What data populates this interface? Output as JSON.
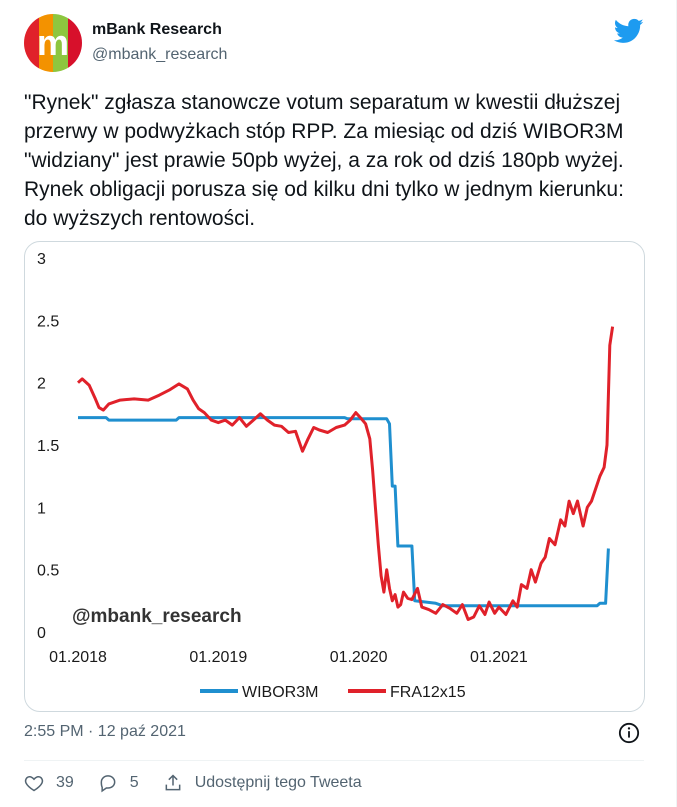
{
  "tweet": {
    "author_name": "mBank Research",
    "author_handle": "@mbank_research",
    "avatar_letter": "m",
    "text": "\"Rynek\" zgłasza stanowcze votum separatum w kwestii dłuższej przerwy w podwyżkach stóp RPP. Za miesiąc od dziś WIBOR3M \"widziany\" jest prawie 50pb wyżej, a za rok od dziś 180pb wyżej. Rynek obligacji porusza się od kilku dni tylko w jednym kierunku: do wyższych rentowości.",
    "timestamp": "2:55 PM · 12 paź 2021",
    "likes": "39",
    "replies": "5",
    "share_label": "Udostępnij tego Tweeta"
  },
  "colors": {
    "twitter_blue": "#1d9bf0",
    "wibor": "#1f8fcf",
    "fra": "#e0212a",
    "muted": "#536471"
  },
  "icons": [
    "twitter-bird-icon",
    "info-icon",
    "heart-icon",
    "reply-icon",
    "share-icon"
  ],
  "chart_data": {
    "type": "line",
    "title": "",
    "xlabel": "",
    "ylabel": "",
    "ylim": [
      0,
      3
    ],
    "xlim": [
      2018.0,
      2021.92
    ],
    "yticks": [
      "0",
      "0.5",
      "1",
      "1.5",
      "2",
      "2.5",
      "3"
    ],
    "xticks": [
      "01.2018",
      "01.2019",
      "01.2020",
      "01.2021"
    ],
    "watermark": "@mbank_research",
    "legend_position": "bottom",
    "grid": false,
    "series": [
      {
        "name": "WIBOR3M",
        "color": "#1f8fcf",
        "points": [
          [
            2018.0,
            1.72
          ],
          [
            2018.2,
            1.72
          ],
          [
            2018.22,
            1.7
          ],
          [
            2018.7,
            1.7
          ],
          [
            2018.72,
            1.72
          ],
          [
            2019.5,
            1.72
          ],
          [
            2019.7,
            1.72
          ],
          [
            2019.9,
            1.72
          ],
          [
            2019.92,
            1.71
          ],
          [
            2020.2,
            1.71
          ],
          [
            2020.22,
            1.67
          ],
          [
            2020.24,
            1.17
          ],
          [
            2020.26,
            1.17
          ],
          [
            2020.28,
            0.69
          ],
          [
            2020.38,
            0.69
          ],
          [
            2020.4,
            0.25
          ],
          [
            2020.55,
            0.23
          ],
          [
            2020.6,
            0.21
          ],
          [
            2021.0,
            0.21
          ],
          [
            2021.3,
            0.21
          ],
          [
            2021.5,
            0.21
          ],
          [
            2021.7,
            0.21
          ],
          [
            2021.72,
            0.23
          ],
          [
            2021.76,
            0.23
          ],
          [
            2021.78,
            0.67
          ]
        ]
      },
      {
        "name": "FRA12x15",
        "color": "#e0212a",
        "points": [
          [
            2018.0,
            2.0
          ],
          [
            2018.03,
            2.03
          ],
          [
            2018.08,
            1.98
          ],
          [
            2018.12,
            1.88
          ],
          [
            2018.15,
            1.8
          ],
          [
            2018.18,
            1.78
          ],
          [
            2018.22,
            1.83
          ],
          [
            2018.3,
            1.86
          ],
          [
            2018.4,
            1.87
          ],
          [
            2018.5,
            1.86
          ],
          [
            2018.58,
            1.9
          ],
          [
            2018.65,
            1.94
          ],
          [
            2018.72,
            1.99
          ],
          [
            2018.78,
            1.95
          ],
          [
            2018.82,
            1.86
          ],
          [
            2018.86,
            1.79
          ],
          [
            2018.9,
            1.76
          ],
          [
            2018.95,
            1.7
          ],
          [
            2019.0,
            1.68
          ],
          [
            2019.05,
            1.7
          ],
          [
            2019.1,
            1.66
          ],
          [
            2019.15,
            1.72
          ],
          [
            2019.2,
            1.65
          ],
          [
            2019.25,
            1.7
          ],
          [
            2019.3,
            1.75
          ],
          [
            2019.35,
            1.7
          ],
          [
            2019.4,
            1.66
          ],
          [
            2019.45,
            1.65
          ],
          [
            2019.5,
            1.6
          ],
          [
            2019.55,
            1.61
          ],
          [
            2019.6,
            1.45
          ],
          [
            2019.64,
            1.55
          ],
          [
            2019.68,
            1.64
          ],
          [
            2019.72,
            1.62
          ],
          [
            2019.78,
            1.6
          ],
          [
            2019.84,
            1.64
          ],
          [
            2019.9,
            1.66
          ],
          [
            2019.94,
            1.7
          ],
          [
            2019.98,
            1.76
          ],
          [
            2020.02,
            1.71
          ],
          [
            2020.05,
            1.67
          ],
          [
            2020.08,
            1.55
          ],
          [
            2020.1,
            1.3
          ],
          [
            2020.12,
            1.0
          ],
          [
            2020.14,
            0.7
          ],
          [
            2020.16,
            0.45
          ],
          [
            2020.18,
            0.32
          ],
          [
            2020.2,
            0.5
          ],
          [
            2020.22,
            0.35
          ],
          [
            2020.24,
            0.25
          ],
          [
            2020.26,
            0.3
          ],
          [
            2020.28,
            0.2
          ],
          [
            2020.3,
            0.22
          ],
          [
            2020.32,
            0.32
          ],
          [
            2020.35,
            0.27
          ],
          [
            2020.38,
            0.26
          ],
          [
            2020.42,
            0.35
          ],
          [
            2020.45,
            0.2
          ],
          [
            2020.5,
            0.18
          ],
          [
            2020.55,
            0.15
          ],
          [
            2020.6,
            0.22
          ],
          [
            2020.65,
            0.19
          ],
          [
            2020.7,
            0.15
          ],
          [
            2020.74,
            0.22
          ],
          [
            2020.78,
            0.1
          ],
          [
            2020.82,
            0.12
          ],
          [
            2020.86,
            0.21
          ],
          [
            2020.9,
            0.14
          ],
          [
            2020.93,
            0.24
          ],
          [
            2020.97,
            0.15
          ],
          [
            2021.0,
            0.2
          ],
          [
            2021.05,
            0.14
          ],
          [
            2021.1,
            0.25
          ],
          [
            2021.13,
            0.2
          ],
          [
            2021.16,
            0.38
          ],
          [
            2021.2,
            0.35
          ],
          [
            2021.23,
            0.5
          ],
          [
            2021.26,
            0.4
          ],
          [
            2021.3,
            0.55
          ],
          [
            2021.33,
            0.6
          ],
          [
            2021.36,
            0.75
          ],
          [
            2021.4,
            0.7
          ],
          [
            2021.44,
            0.9
          ],
          [
            2021.47,
            0.85
          ],
          [
            2021.5,
            1.05
          ],
          [
            2021.53,
            0.95
          ],
          [
            2021.56,
            1.05
          ],
          [
            2021.6,
            0.85
          ],
          [
            2021.63,
            1.0
          ],
          [
            2021.66,
            1.05
          ],
          [
            2021.69,
            1.15
          ],
          [
            2021.72,
            1.25
          ],
          [
            2021.75,
            1.32
          ],
          [
            2021.77,
            1.5
          ],
          [
            2021.79,
            2.3
          ],
          [
            2021.81,
            2.45
          ]
        ]
      }
    ]
  }
}
